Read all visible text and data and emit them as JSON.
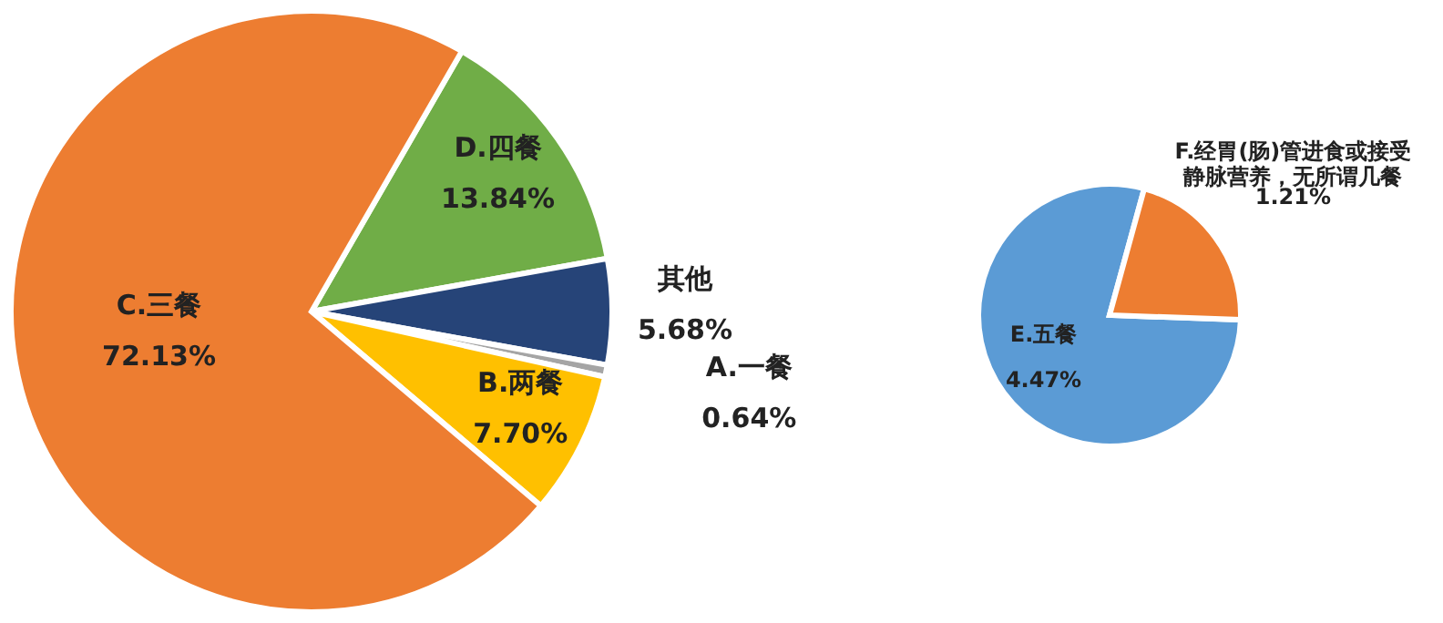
{
  "chart_data": [
    {
      "type": "pie",
      "categories": [
        "D.四餐",
        "其他",
        "A.一餐",
        "B.两餐",
        "C.三餐"
      ],
      "values": [
        13.84,
        5.68,
        0.64,
        7.7,
        72.13
      ],
      "value_labels": [
        "13.84%",
        "5.68%",
        "0.64%",
        "7.70%",
        "72.13%"
      ],
      "colors": [
        "#70ad47",
        "#264478",
        "#a5a5a5",
        "#ffc000",
        "#ed7d31"
      ]
    },
    {
      "type": "pie",
      "categories": [
        "E.五餐",
        "F.经胃(肠)管进食或接受静脉营养，无所谓几餐"
      ],
      "values": [
        4.47,
        1.21
      ],
      "value_labels": [
        "4.47%",
        "1.21%"
      ],
      "colors": [
        "#5b9bd5",
        "#ed7d31"
      ]
    }
  ]
}
